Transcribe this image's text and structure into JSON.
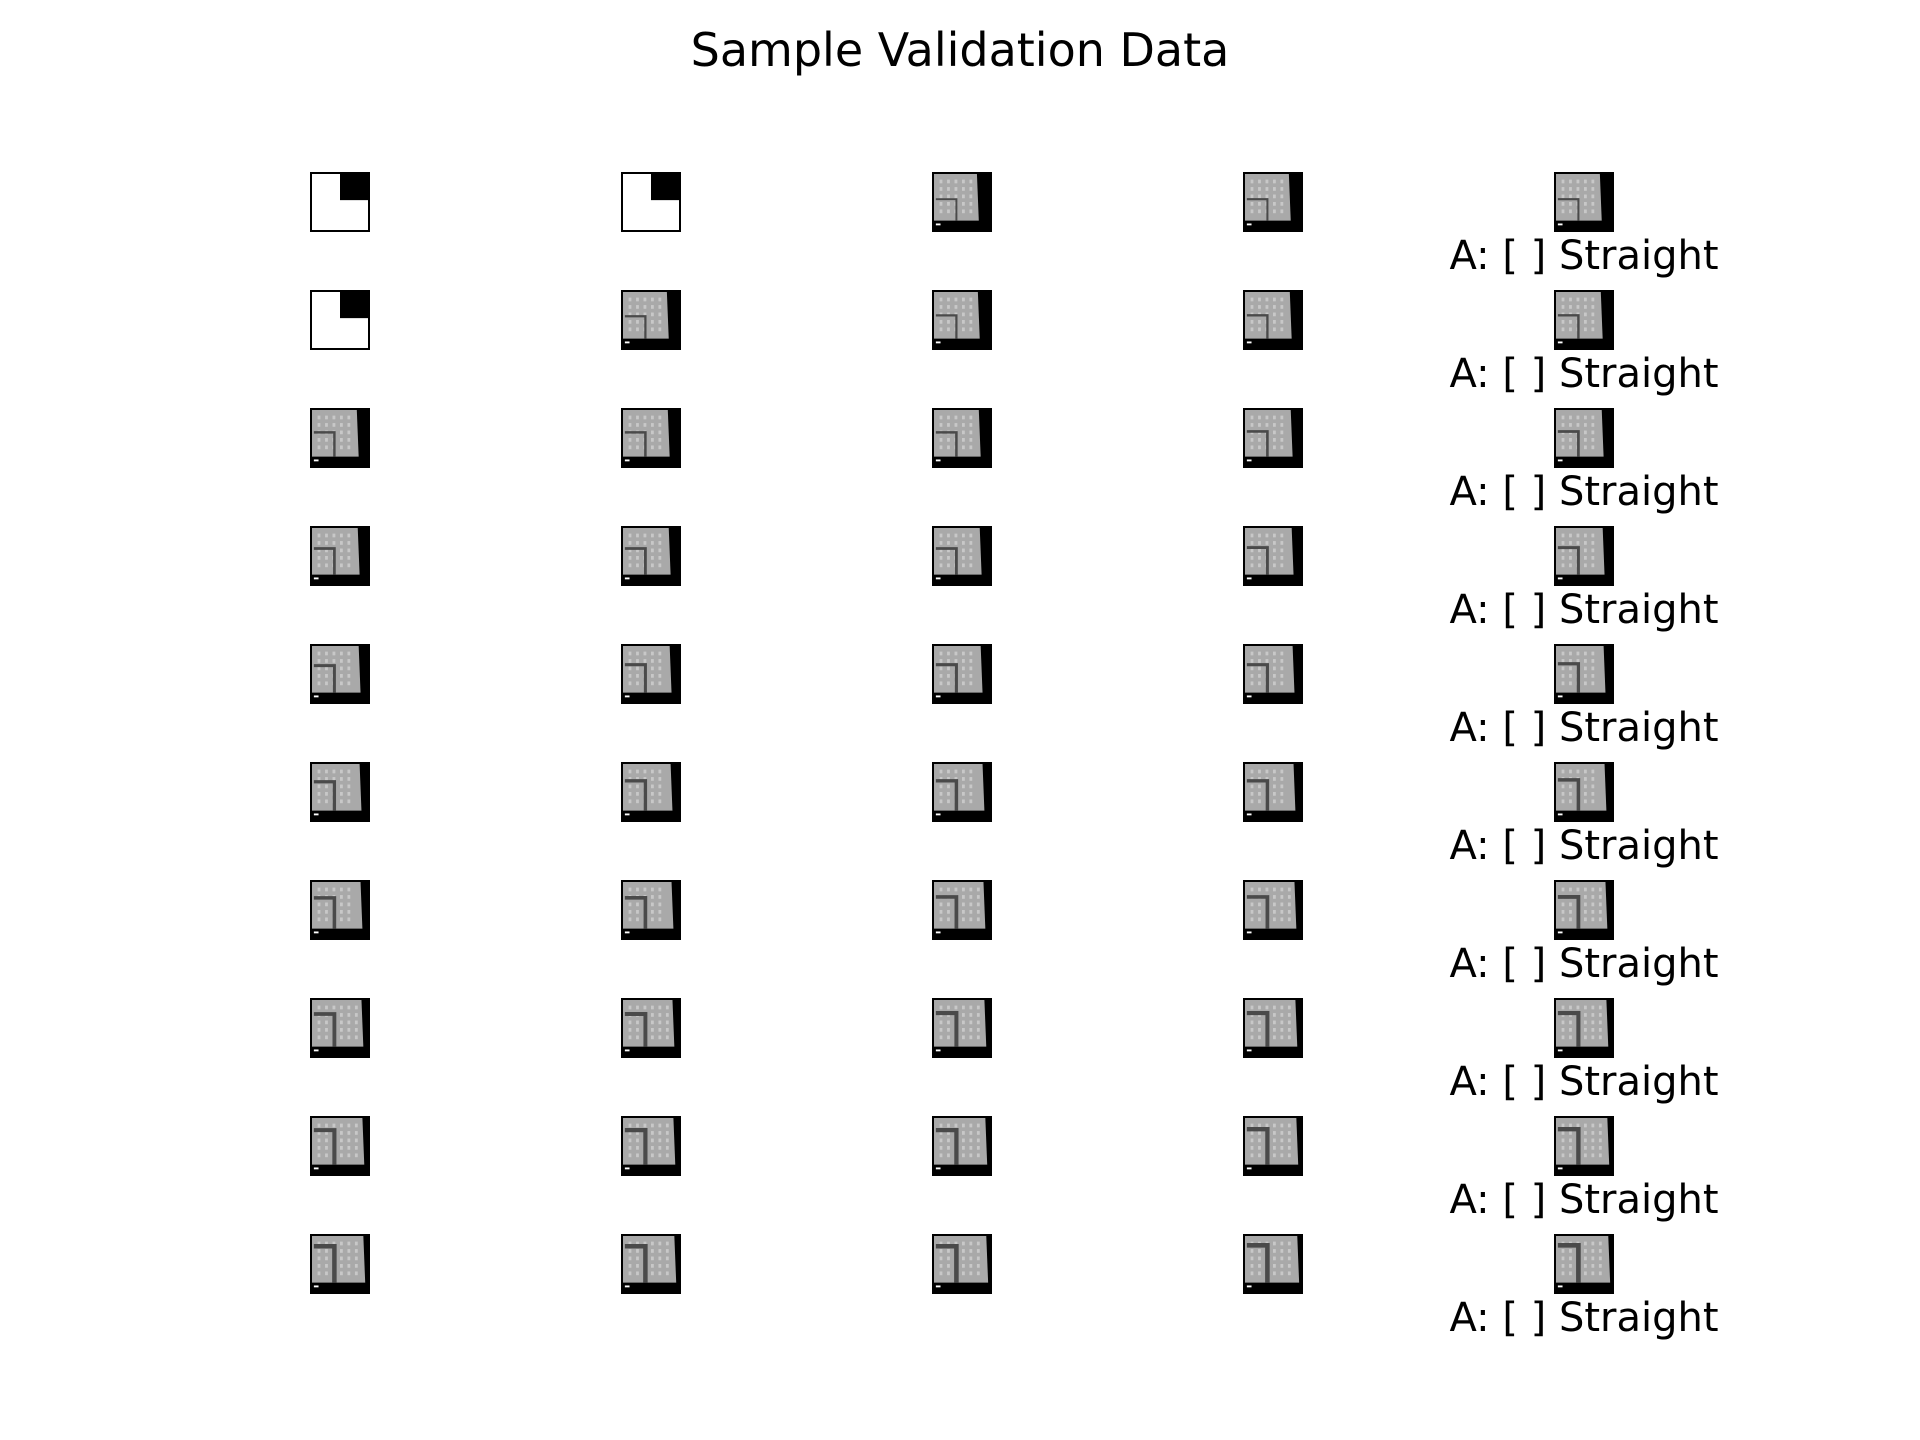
{
  "title": "Sample Validation Data",
  "grid": {
    "rows": 10,
    "cols": 5,
    "frame_styles": [
      [
        "blank",
        "blank",
        "frame",
        "frame",
        "frame"
      ],
      [
        "blank",
        "frame",
        "frame",
        "frame",
        "frame"
      ],
      [
        "frame",
        "frame",
        "frame",
        "frame",
        "frame"
      ],
      [
        "frame",
        "frame",
        "frame",
        "frame",
        "frame"
      ],
      [
        "frame",
        "frame",
        "frame",
        "frame",
        "frame"
      ],
      [
        "frame",
        "frame",
        "frame",
        "frame",
        "frame"
      ],
      [
        "frame",
        "frame",
        "frame",
        "frame",
        "frame"
      ],
      [
        "frame",
        "frame",
        "frame",
        "frame",
        "frame"
      ],
      [
        "frame",
        "frame",
        "frame",
        "frame",
        "frame"
      ],
      [
        "frame",
        "frame",
        "frame",
        "frame",
        "frame"
      ]
    ]
  },
  "captions": [
    "A: [ ] Straight",
    "A: [ ] Straight",
    "A: [ ] Straight",
    "A: [ ] Straight",
    "A: [ ] Straight",
    "A: [ ] Straight",
    "A: [ ] Straight",
    "A: [ ] Straight",
    "A: [ ] Straight",
    "A: [ ] Straight"
  ],
  "colors": {
    "background": "#ffffff",
    "frame_gray": "#a9a9a9",
    "dark": "#000000",
    "track": "#4a4a4a"
  }
}
